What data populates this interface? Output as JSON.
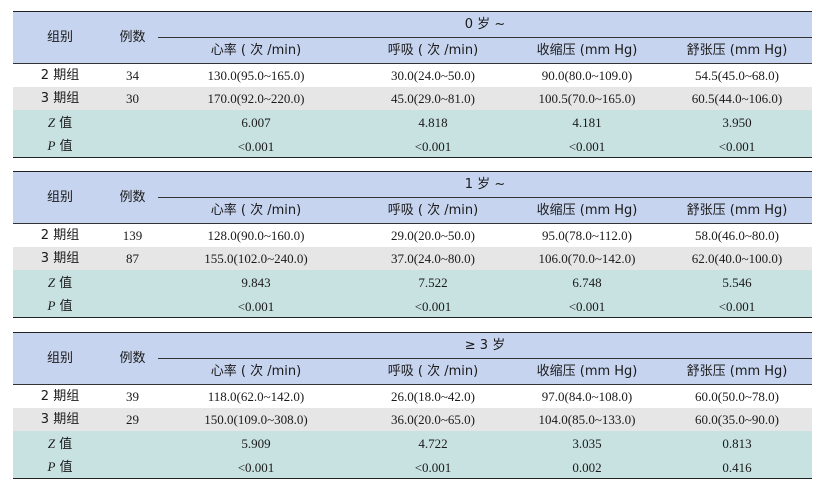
{
  "headers": {
    "group": "组别",
    "count": "例数",
    "hr": "心率 ( 次 /min)",
    "rr": "呼吸 ( 次 /min)",
    "sbp": "收缩压 (mm Hg)",
    "dbp": "舒张压 (mm Hg)"
  },
  "stat_labels": {
    "z": "Z",
    "p": "P",
    "value_suffix": " 值"
  },
  "sections": [
    {
      "age": "0 岁 ~",
      "rows": [
        {
          "group": "2 期组",
          "n": "34",
          "hr": "130.0(95.0~165.0)",
          "rr": "30.0(24.0~50.0)",
          "sbp": "90.0(80.0~109.0)",
          "dbp": "54.5(45.0~68.0)"
        },
        {
          "group": "3 期组",
          "n": "30",
          "hr": "170.0(92.0~220.0)",
          "rr": "45.0(29.0~81.0)",
          "sbp": "100.5(70.0~165.0)",
          "dbp": "60.5(44.0~106.0)"
        }
      ],
      "z": {
        "hr": "6.007",
        "rr": "4.818",
        "sbp": "4.181",
        "dbp": "3.950"
      },
      "p": {
        "hr": "<0.001",
        "rr": "<0.001",
        "sbp": "<0.001",
        "dbp": "<0.001"
      }
    },
    {
      "age": "1 岁 ~",
      "rows": [
        {
          "group": "2 期组",
          "n": "139",
          "hr": "128.0(90.0~160.0)",
          "rr": "29.0(20.0~50.0)",
          "sbp": "95.0(78.0~112.0)",
          "dbp": "58.0(46.0~80.0)"
        },
        {
          "group": "3 期组",
          "n": "87",
          "hr": "155.0(102.0~240.0)",
          "rr": "37.0(24.0~80.0)",
          "sbp": "106.0(70.0~142.0)",
          "dbp": "62.0(40.0~100.0)"
        }
      ],
      "z": {
        "hr": "9.843",
        "rr": "7.522",
        "sbp": "6.748",
        "dbp": "5.546"
      },
      "p": {
        "hr": "<0.001",
        "rr": "<0.001",
        "sbp": "<0.001",
        "dbp": "<0.001"
      }
    },
    {
      "age": "≥ 3 岁",
      "rows": [
        {
          "group": "2 期组",
          "n": "39",
          "hr": "118.0(62.0~142.0)",
          "rr": "26.0(18.0~42.0)",
          "sbp": "97.0(84.0~108.0)",
          "dbp": "60.0(50.0~78.0)"
        },
        {
          "group": "3 期组",
          "n": "29",
          "hr": "150.0(109.0~308.0)",
          "rr": "36.0(20.0~65.0)",
          "sbp": "104.0(85.0~133.0)",
          "dbp": "60.0(35.0~90.0)"
        }
      ],
      "z": {
        "hr": "5.909",
        "rr": "4.722",
        "sbp": "3.035",
        "dbp": "0.813"
      },
      "p": {
        "hr": "<0.001",
        "rr": "<0.001",
        "sbp": "0.002",
        "dbp": "0.416"
      }
    }
  ]
}
